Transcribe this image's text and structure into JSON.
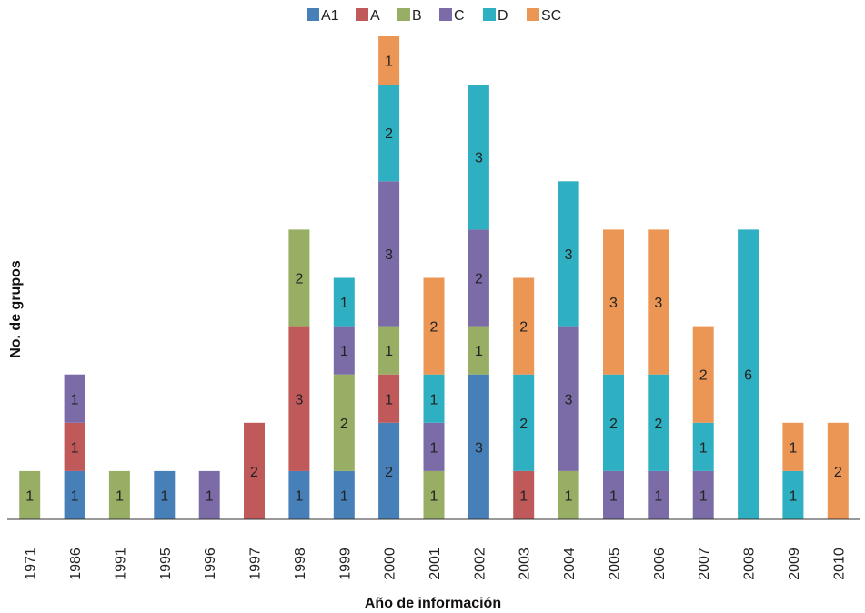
{
  "chart_data": {
    "type": "bar",
    "stacked": true,
    "xlabel": "Año de información",
    "ylabel": "No. de grupos",
    "categories": [
      "1971",
      "1986",
      "1991",
      "1995",
      "1996",
      "1997",
      "1998",
      "1999",
      "2000",
      "2001",
      "2002",
      "2003",
      "2004",
      "2005",
      "2006",
      "2007",
      "2008",
      "2009",
      "2010"
    ],
    "series": [
      {
        "name": "A1",
        "color": "#4780b8",
        "values": [
          0,
          1,
          0,
          1,
          0,
          0,
          1,
          1,
          2,
          0,
          3,
          0,
          0,
          0,
          0,
          0,
          0,
          0,
          0
        ]
      },
      {
        "name": "A",
        "color": "#c0595a",
        "values": [
          0,
          1,
          0,
          0,
          0,
          2,
          3,
          0,
          1,
          0,
          0,
          1,
          0,
          0,
          0,
          0,
          0,
          0,
          0
        ]
      },
      {
        "name": "B",
        "color": "#98ae64",
        "values": [
          1,
          0,
          1,
          0,
          0,
          0,
          2,
          2,
          1,
          1,
          1,
          0,
          1,
          0,
          0,
          0,
          0,
          0,
          0
        ]
      },
      {
        "name": "C",
        "color": "#7b6ca8",
        "values": [
          0,
          1,
          0,
          0,
          1,
          0,
          0,
          1,
          3,
          1,
          2,
          0,
          3,
          1,
          1,
          1,
          0,
          0,
          0
        ]
      },
      {
        "name": "D",
        "color": "#2fb0c2",
        "values": [
          0,
          0,
          0,
          0,
          0,
          0,
          0,
          1,
          2,
          1,
          3,
          2,
          3,
          2,
          2,
          1,
          6,
          1,
          0
        ]
      },
      {
        "name": "SC",
        "color": "#ec9656",
        "values": [
          0,
          0,
          0,
          0,
          0,
          0,
          0,
          0,
          1,
          2,
          0,
          2,
          0,
          3,
          3,
          2,
          0,
          1,
          2
        ]
      }
    ],
    "ylim": [
      0,
      10
    ],
    "grid": false,
    "legend_position": "top-center",
    "data_labels": true
  }
}
